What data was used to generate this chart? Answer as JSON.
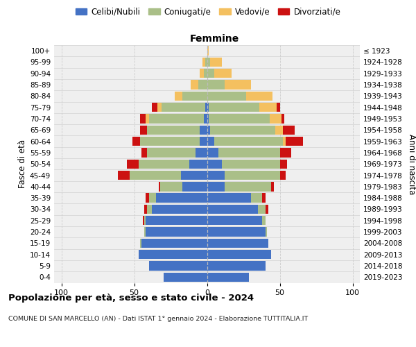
{
  "age_groups": [
    "0-4",
    "5-9",
    "10-14",
    "15-19",
    "20-24",
    "25-29",
    "30-34",
    "35-39",
    "40-44",
    "45-49",
    "50-54",
    "55-59",
    "60-64",
    "65-69",
    "70-74",
    "75-79",
    "80-84",
    "85-89",
    "90-94",
    "95-99",
    "100+"
  ],
  "birth_years": [
    "2019-2023",
    "2014-2018",
    "2009-2013",
    "2004-2008",
    "1999-2003",
    "1994-1998",
    "1989-1993",
    "1984-1988",
    "1979-1983",
    "1974-1978",
    "1969-1973",
    "1964-1968",
    "1959-1963",
    "1954-1958",
    "1949-1953",
    "1944-1948",
    "1939-1943",
    "1934-1938",
    "1929-1933",
    "1924-1928",
    "≤ 1923"
  ],
  "colors": {
    "celibi": "#4472C4",
    "coniugati": "#AABF88",
    "vedovi": "#F4C060",
    "divorziati": "#CC1111"
  },
  "males": {
    "celibi": [
      30,
      40,
      47,
      45,
      42,
      42,
      38,
      35,
      17,
      18,
      12,
      8,
      5,
      5,
      2,
      1,
      0,
      0,
      0,
      0,
      0
    ],
    "coniugati": [
      0,
      0,
      0,
      1,
      1,
      1,
      3,
      5,
      15,
      35,
      35,
      33,
      41,
      36,
      38,
      30,
      17,
      6,
      2,
      1,
      0
    ],
    "vedovi": [
      0,
      0,
      0,
      0,
      0,
      0,
      0,
      0,
      0,
      0,
      0,
      0,
      0,
      0,
      2,
      3,
      5,
      5,
      3,
      2,
      0
    ],
    "divorziati": [
      0,
      0,
      0,
      0,
      0,
      1,
      2,
      2,
      1,
      8,
      8,
      4,
      5,
      5,
      4,
      4,
      0,
      0,
      0,
      0,
      0
    ]
  },
  "females": {
    "nubili": [
      29,
      40,
      44,
      42,
      40,
      38,
      35,
      30,
      12,
      12,
      10,
      8,
      5,
      2,
      1,
      1,
      0,
      0,
      0,
      0,
      0
    ],
    "coniugate": [
      0,
      0,
      0,
      0,
      1,
      2,
      5,
      8,
      32,
      38,
      40,
      42,
      47,
      45,
      42,
      35,
      27,
      12,
      5,
      2,
      0
    ],
    "vedove": [
      0,
      0,
      0,
      0,
      0,
      0,
      0,
      0,
      0,
      0,
      0,
      0,
      2,
      5,
      8,
      12,
      18,
      18,
      12,
      8,
      1
    ],
    "divorziate": [
      0,
      0,
      0,
      0,
      0,
      0,
      2,
      2,
      2,
      4,
      5,
      8,
      12,
      8,
      2,
      2,
      0,
      0,
      0,
      0,
      0
    ]
  },
  "title": "Popolazione per età, sesso e stato civile - 2024",
  "subtitle": "COMUNE DI SAN MARCELLO (AN) - Dati ISTAT 1° gennaio 2024 - Elaborazione TUTTITALIA.IT",
  "ylabel_left": "Fasce di età",
  "ylabel_right": "Anni di nascita",
  "header_right": "Femmine",
  "xlim": 105,
  "bg_color": "#efefef",
  "grid_color": "#cccccc"
}
